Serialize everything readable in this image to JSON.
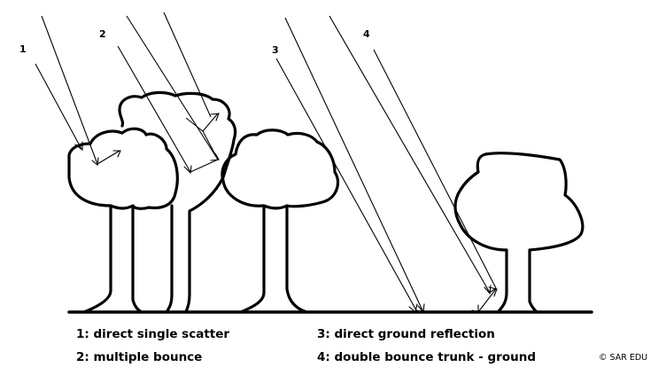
{
  "ray_numbers": {
    "n1": "1",
    "n2": "2",
    "n3": "3",
    "n4": "4"
  },
  "legend": {
    "item1": "1: direct single scatter",
    "item2": "2: multiple bounce",
    "item3": "3: direct ground reflection",
    "item4": "4: double bounce trunk - ground"
  },
  "credit": "© SAR EDU"
}
